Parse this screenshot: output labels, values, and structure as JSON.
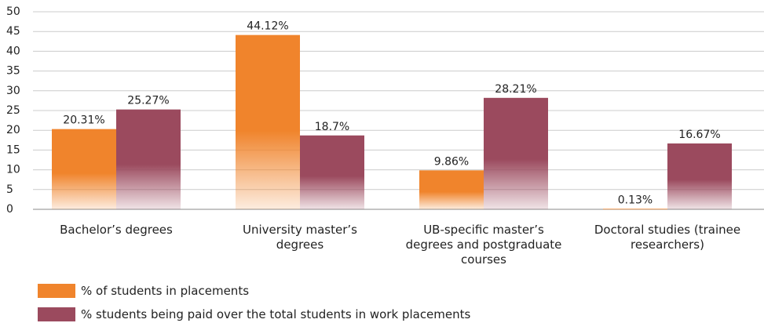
{
  "chart_data": {
    "type": "bar",
    "categories": [
      "Bachelor’s degrees",
      "University master’s degrees",
      "UB-specific master’s degrees and postgraduate courses",
      "Doctoral studies (trainee researchers)"
    ],
    "series": [
      {
        "name": "% of students in placements",
        "color": "#f0842c",
        "values": [
          20.31,
          44.12,
          9.86,
          0.13
        ],
        "value_labels": [
          "20.31%",
          "44.12%",
          "9.86%",
          "0.13%"
        ]
      },
      {
        "name": "% students being paid over the total students in work placements",
        "color": "#9b4a5e",
        "values": [
          25.27,
          18.7,
          28.21,
          16.67
        ],
        "value_labels": [
          "25.27%",
          "18.7%",
          "28.21%",
          "16.67%"
        ]
      }
    ],
    "ylim": [
      0,
      50
    ],
    "yticks": [
      0,
      5,
      10,
      15,
      20,
      25,
      30,
      35,
      40,
      45,
      50
    ],
    "grid": true
  }
}
